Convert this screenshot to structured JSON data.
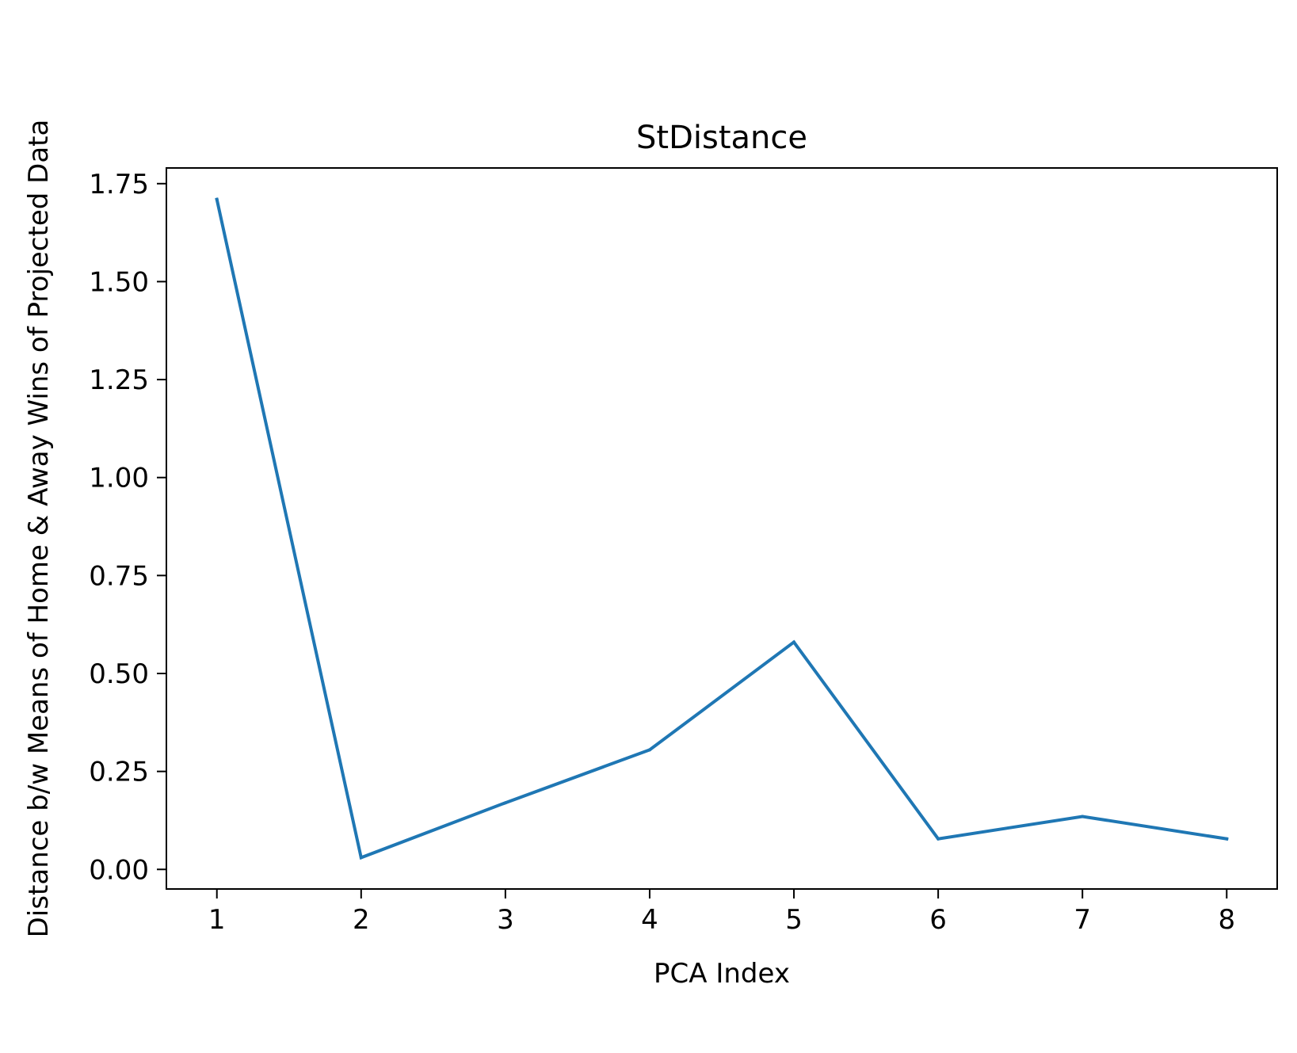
{
  "chart_data": {
    "type": "line",
    "title": "StDistance",
    "xlabel": "PCA Index",
    "ylabel": "Distance b/w Means of Home & Away Wins of Projected Data",
    "x": [
      1,
      2,
      3,
      4,
      5,
      6,
      7,
      8
    ],
    "series": [
      {
        "values": [
          1.71,
          0.03,
          0.17,
          0.305,
          0.58,
          0.078,
          0.135,
          0.078
        ],
        "color": "#1f77b4"
      }
    ],
    "xticks": [
      "1",
      "2",
      "3",
      "4",
      "5",
      "6",
      "7",
      "8"
    ],
    "yticks": [
      "0.00",
      "0.25",
      "0.50",
      "0.75",
      "1.00",
      "1.25",
      "1.50",
      "1.75"
    ],
    "xlim": [
      0.65,
      8.35
    ],
    "ylim": [
      -0.05,
      1.79
    ],
    "grid": false,
    "legend": "none"
  }
}
